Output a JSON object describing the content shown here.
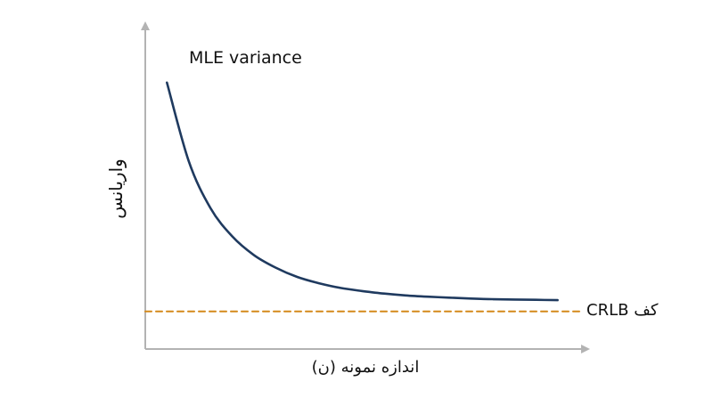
{
  "chart_data": {
    "type": "line",
    "title": "",
    "xlabel": "اندازه نمونه (ن)",
    "ylabel": "واریانس",
    "xlim": [
      0,
      1
    ],
    "ylim": [
      0,
      1
    ],
    "grid": false,
    "series": [
      {
        "name": "MLE variance",
        "color": "#1f3a5f",
        "style": "solid",
        "x": [
          0.05,
          0.1,
          0.15,
          0.2,
          0.25,
          0.3,
          0.35,
          0.4,
          0.45,
          0.5,
          0.55,
          0.6,
          0.65,
          0.7,
          0.75,
          0.8,
          0.85,
          0.9,
          0.95
        ],
        "y": [
          0.85,
          0.6,
          0.45,
          0.36,
          0.3,
          0.26,
          0.23,
          0.21,
          0.195,
          0.185,
          0.177,
          0.171,
          0.167,
          0.164,
          0.161,
          0.159,
          0.158,
          0.157,
          0.156
        ]
      },
      {
        "name": "CRLB کف",
        "color": "#d4891a",
        "style": "dashed",
        "x": [
          0.0,
          1.0
        ],
        "y": [
          0.12,
          0.12
        ]
      }
    ],
    "annotations": [
      {
        "text": "MLE variance",
        "series": 0
      },
      {
        "text": "CRLB کف",
        "series": 1
      }
    ]
  }
}
